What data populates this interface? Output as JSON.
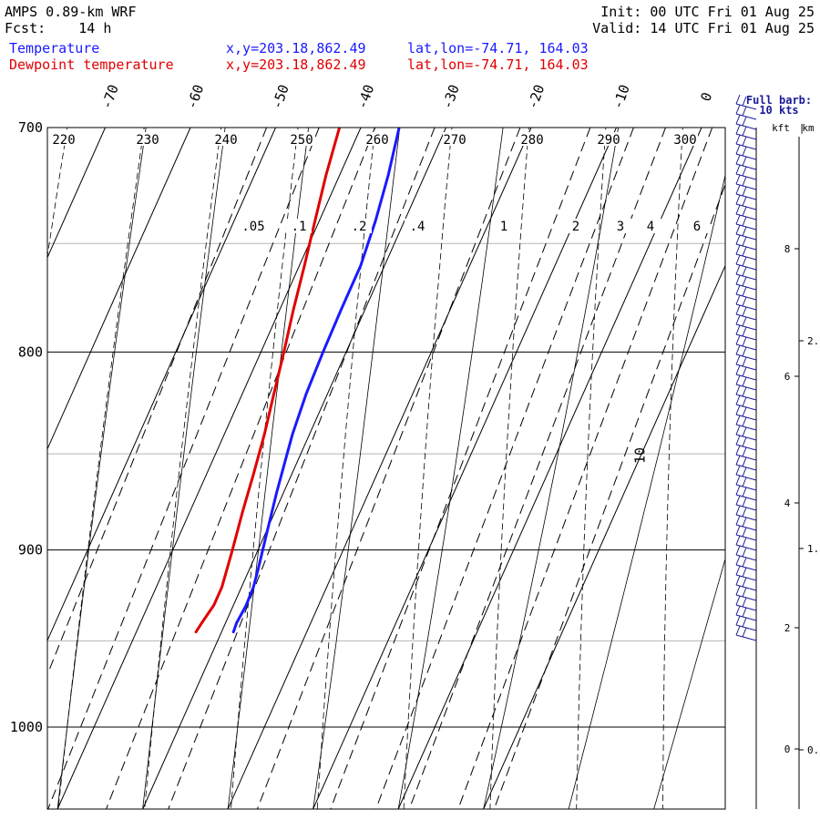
{
  "header": {
    "model": "AMPS 0.89-km WRF",
    "fcst": "Fcst:    14 h",
    "init": "Init: 00 UTC Fri 01 Aug 25",
    "valid": "Valid: 14 UTC Fri 01 Aug 25",
    "temperature_label": "Temperature",
    "dewpoint_label": "Dewpoint temperature",
    "temperature_xy": "x,y=203.18,862.49",
    "dewpoint_xy": "x,y=203.18,862.49",
    "temperature_latlon": "lat,lon=-74.71, 164.03",
    "dewpoint_latlon": "lat,lon=-74.71, 164.03"
  },
  "colors": {
    "temperature": "#1a1aff",
    "dewpoint": "#e00000",
    "barb": "#1a1a99"
  },
  "chart_data": {
    "type": "line",
    "diagram": "skew-T log-p",
    "pressure_axis": {
      "range": [
        1040,
        700
      ],
      "scale": "log",
      "tick_labels": [
        "700",
        "800",
        "900",
        "1000"
      ],
      "gridlines": [
        700,
        750,
        800,
        850,
        900,
        950,
        1000
      ]
    },
    "isotherms_c": [
      -70,
      -60,
      -50,
      -40,
      -30,
      -20,
      -10,
      0,
      10
    ],
    "isotherm_labels": [
      "-70",
      "-60",
      "-50",
      "-40",
      "-30",
      "-20",
      "-10",
      "0",
      "10"
    ],
    "dry_adiabat_labels": [
      "220",
      "230",
      "240",
      "250",
      "260",
      "270",
      "280",
      "290",
      "300"
    ],
    "mixing_ratio_labels": [
      ".05",
      ".1",
      ".2",
      ".4",
      "1",
      "2",
      "3",
      "4",
      "6"
    ],
    "series": [
      {
        "name": "Temperature",
        "p": [
          700,
          720,
          740,
          760,
          780,
          800,
          820,
          840,
          850,
          870,
          890,
          910,
          920,
          930,
          940,
          945
        ],
        "t": [
          -35.5,
          -34.3,
          -33.4,
          -32.8,
          -32.8,
          -32.7,
          -32.5,
          -32.0,
          -31.6,
          -30.8,
          -29.9,
          -29.0,
          -28.6,
          -28.5,
          -28.7,
          -28.6
        ]
      },
      {
        "name": "Dewpoint temperature",
        "p": [
          700,
          720,
          740,
          760,
          780,
          800,
          820,
          840,
          860,
          880,
          900,
          920,
          930,
          940,
          945
        ],
        "t": [
          -42.5,
          -41.6,
          -40.5,
          -39.4,
          -38.4,
          -37.3,
          -36.3,
          -35.3,
          -34.5,
          -33.8,
          -33.0,
          -32.3,
          -32.3,
          -32.8,
          -33.0
        ]
      }
    ],
    "wind_profile": {
      "legend_title": "Full barb:",
      "legend_value": "10 kts",
      "height_axis_label_kft": "kft",
      "height_axis_label_km": "km",
      "kft_ticks": [
        "8",
        "6",
        "4",
        "2",
        "0"
      ],
      "km_ticks": [
        "2.",
        "1.",
        "0."
      ]
    }
  }
}
